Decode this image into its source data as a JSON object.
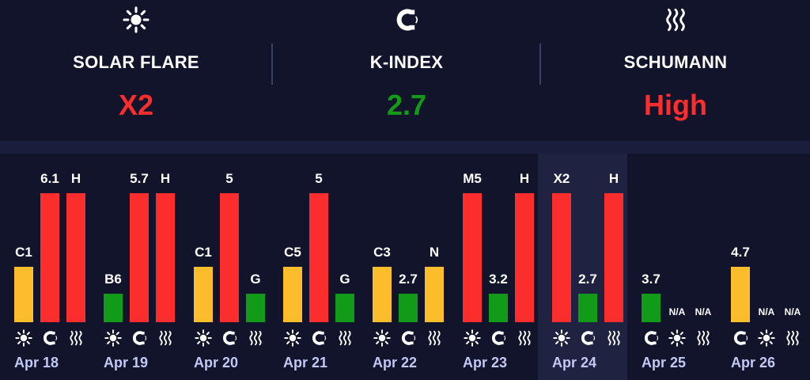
{
  "colors": {
    "flare": "#fbbd2b",
    "high": "#fb2d2d",
    "green": "#129b19"
  },
  "header": {
    "solar": {
      "icon": "sun-icon",
      "label": "SOLAR FLARE",
      "value": "X2",
      "color": "#fb2d2d"
    },
    "kindex": {
      "icon": "magnet-icon",
      "label": "K-INDEX",
      "value": "2.7",
      "color": "#129b19"
    },
    "schumann": {
      "icon": "waves-icon",
      "label": "SCHUMANN",
      "value": "High",
      "color": "#fb2d2d"
    }
  },
  "chart_data": {
    "type": "bar",
    "categories": [
      "Apr 18",
      "Apr 19",
      "Apr 20",
      "Apr 21",
      "Apr 22",
      "Apr 23",
      "Apr 24",
      "Apr 25",
      "Apr 26"
    ],
    "highlighted_category": "Apr 24",
    "days": [
      {
        "date": "Apr 18",
        "bars": [
          {
            "kind": "flare",
            "label": "C1",
            "level": 0.29,
            "color": "#fbbd2b",
            "icon": "sun-icon"
          },
          {
            "kind": "kindex",
            "label": "6.1",
            "level": 0.68,
            "color": "#fb2d2d",
            "icon": "magnet-icon"
          },
          {
            "kind": "schumann",
            "label": "H",
            "level": 0.68,
            "color": "#fb2d2d",
            "icon": "waves-icon"
          }
        ]
      },
      {
        "date": "Apr 19",
        "bars": [
          {
            "kind": "flare",
            "label": "B6",
            "level": 0.15,
            "color": "#129b19",
            "icon": "sun-icon"
          },
          {
            "kind": "kindex",
            "label": "5.7",
            "level": 0.68,
            "color": "#fb2d2d",
            "icon": "magnet-icon"
          },
          {
            "kind": "schumann",
            "label": "H",
            "level": 0.68,
            "color": "#fb2d2d",
            "icon": "waves-icon"
          }
        ]
      },
      {
        "date": "Apr 20",
        "bars": [
          {
            "kind": "flare",
            "label": "C1",
            "level": 0.29,
            "color": "#fbbd2b",
            "icon": "sun-icon"
          },
          {
            "kind": "kindex",
            "label": "5",
            "level": 0.68,
            "color": "#fb2d2d",
            "icon": "magnet-icon"
          },
          {
            "kind": "schumann",
            "label": "G",
            "level": 0.15,
            "color": "#129b19",
            "icon": "waves-icon"
          }
        ]
      },
      {
        "date": "Apr 21",
        "bars": [
          {
            "kind": "flare",
            "label": "C5",
            "level": 0.29,
            "color": "#fbbd2b",
            "icon": "sun-icon"
          },
          {
            "kind": "kindex",
            "label": "5",
            "level": 0.68,
            "color": "#fb2d2d",
            "icon": "magnet-icon"
          },
          {
            "kind": "schumann",
            "label": "G",
            "level": 0.15,
            "color": "#129b19",
            "icon": "waves-icon"
          }
        ]
      },
      {
        "date": "Apr 22",
        "bars": [
          {
            "kind": "flare",
            "label": "C3",
            "level": 0.29,
            "color": "#fbbd2b",
            "icon": "sun-icon"
          },
          {
            "kind": "kindex",
            "label": "2.7",
            "level": 0.15,
            "color": "#129b19",
            "icon": "magnet-icon"
          },
          {
            "kind": "schumann",
            "label": "N",
            "level": 0.29,
            "color": "#fbbd2b",
            "icon": "waves-icon"
          }
        ]
      },
      {
        "date": "Apr 23",
        "bars": [
          {
            "kind": "flare",
            "label": "M5",
            "level": 0.68,
            "color": "#fb2d2d",
            "icon": "sun-icon"
          },
          {
            "kind": "kindex",
            "label": "3.2",
            "level": 0.15,
            "color": "#129b19",
            "icon": "magnet-icon"
          },
          {
            "kind": "schumann",
            "label": "H",
            "level": 0.68,
            "color": "#fb2d2d",
            "icon": "waves-icon"
          }
        ]
      },
      {
        "date": "Apr 24",
        "bars": [
          {
            "kind": "flare",
            "label": "X2",
            "level": 0.68,
            "color": "#fb2d2d",
            "icon": "sun-icon"
          },
          {
            "kind": "kindex",
            "label": "2.7",
            "level": 0.15,
            "color": "#129b19",
            "icon": "magnet-icon"
          },
          {
            "kind": "schumann",
            "label": "H",
            "level": 0.68,
            "color": "#fb2d2d",
            "icon": "waves-icon"
          }
        ]
      },
      {
        "date": "Apr 25",
        "bars": [
          {
            "kind": "kindex",
            "label": "3.7",
            "level": 0.15,
            "color": "#129b19",
            "icon": "magnet-icon"
          },
          {
            "kind": "flare",
            "label": "N/A",
            "level": 0,
            "color": "#fbbd2b",
            "icon": "sun-icon"
          },
          {
            "kind": "schumann",
            "label": "N/A",
            "level": 0,
            "color": "#fbbd2b",
            "icon": "waves-icon"
          }
        ]
      },
      {
        "date": "Apr 26",
        "bars": [
          {
            "kind": "kindex",
            "label": "4.7",
            "level": 0.29,
            "color": "#fbbd2b",
            "icon": "magnet-icon"
          },
          {
            "kind": "flare",
            "label": "N/A",
            "level": 0,
            "color": "#fbbd2b",
            "icon": "sun-icon"
          },
          {
            "kind": "schumann",
            "label": "N/A",
            "level": 0,
            "color": "#fbbd2b",
            "icon": "waves-icon"
          }
        ]
      }
    ]
  }
}
